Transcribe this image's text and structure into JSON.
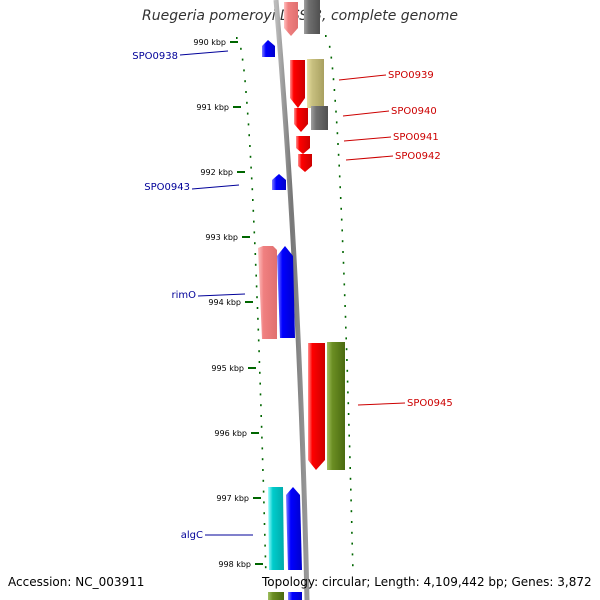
{
  "title": "Ruegeria pomeroyi DSS-3, complete genome",
  "footer": {
    "accession": "Accession: NC_003911",
    "stats": "Topology: circular; Length: 4,109,442 bp; Genes: 3,872"
  },
  "ticks": [
    "990 kbp",
    "991 kbp",
    "992 kbp",
    "993 kbp",
    "994 kbp",
    "995 kbp",
    "996 kbp",
    "997 kbp",
    "998 kbp"
  ],
  "gene_labels": [
    {
      "name": "SPO0938",
      "strand": "minus"
    },
    {
      "name": "SPO0939",
      "strand": "plus"
    },
    {
      "name": "SPO0940",
      "strand": "plus"
    },
    {
      "name": "SPO0941",
      "strand": "plus"
    },
    {
      "name": "SPO0942",
      "strand": "plus"
    },
    {
      "name": "SPO0943",
      "strand": "minus"
    },
    {
      "name": "rimO",
      "strand": "minus"
    },
    {
      "name": "SPO0945",
      "strand": "plus"
    },
    {
      "name": "algC",
      "strand": "minus"
    }
  ],
  "colors": {
    "plus_label": "#cc0000",
    "minus_label": "#000099",
    "forward_cds": "#ff0000",
    "reverse_cds": "#0000ff",
    "tick": "#006600",
    "backbone": "#888888"
  }
}
